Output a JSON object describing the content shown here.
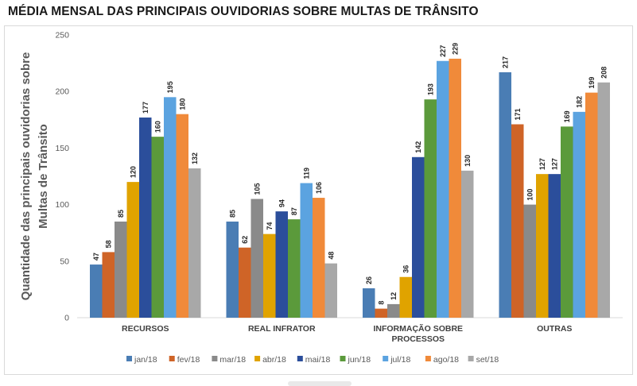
{
  "chart_data": {
    "type": "bar",
    "title": "MÉDIA MENSAL DAS PRINCIPAIS OUVIDORIAS SOBRE MULTAS DE TRÂNSITO",
    "ylabel": [
      "Quantidade das principais ouvidorias sobre",
      "Multas de Trânsito"
    ],
    "xlabel": "",
    "ylim": [
      0,
      250
    ],
    "yticks": [
      "0",
      "50",
      "100",
      "150",
      "200",
      "250"
    ],
    "categories": [
      [
        "RECURSOS"
      ],
      [
        "REAL INFRATOR"
      ],
      [
        "INFORMAÇÃO SOBRE",
        "PROCESSOS"
      ],
      [
        "OUTRAS"
      ]
    ],
    "series": [
      {
        "name": "jan/18",
        "color": "#4a7db4",
        "values": [
          47,
          85,
          26,
          217
        ]
      },
      {
        "name": "fev/18",
        "color": "#cf6427",
        "values": [
          58,
          62,
          8,
          171
        ]
      },
      {
        "name": "mar/18",
        "color": "#8a8a8a",
        "values": [
          85,
          105,
          12,
          100
        ]
      },
      {
        "name": "abr/18",
        "color": "#e0a300",
        "values": [
          120,
          74,
          36,
          127
        ]
      },
      {
        "name": "mai/18",
        "color": "#2b4e9b",
        "values": [
          177,
          94,
          142,
          127
        ]
      },
      {
        "name": "jun/18",
        "color": "#5b9a3b",
        "values": [
          160,
          87,
          193,
          169
        ]
      },
      {
        "name": "jul/18",
        "color": "#5ba3e0",
        "values": [
          195,
          119,
          227,
          182
        ]
      },
      {
        "name": "ago/18",
        "color": "#f08a3a",
        "values": [
          180,
          106,
          229,
          199
        ]
      },
      {
        "name": "set/18",
        "color": "#a8a8a8",
        "values": [
          132,
          48,
          130,
          208
        ]
      }
    ],
    "grid": false,
    "legend": "bottom"
  }
}
